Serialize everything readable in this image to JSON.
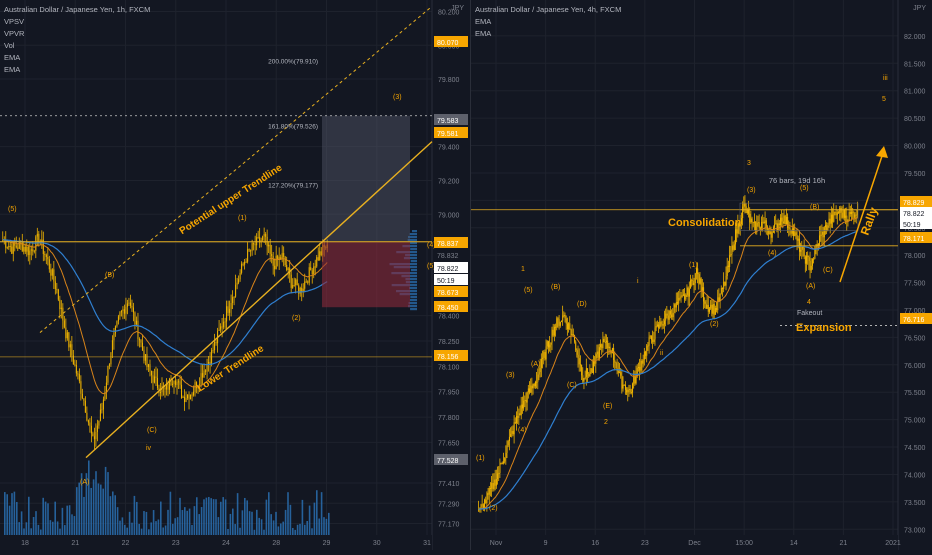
{
  "colors": {
    "bg": "#131722",
    "grid": "#1e222d",
    "candle": "#f0b400",
    "ema_fast": "#d8841a",
    "ema_slow": "#2f7fd0",
    "volume": "#2a6fb0",
    "gold_line": "#e8b020",
    "axis_text": "#7d818c",
    "label_text": "#b2b5be",
    "price_tag_orange": "#f7a600",
    "price_tag_white": "#ffffff",
    "price_tag_gray": "#5d606b",
    "short_box": "#8b2a3a",
    "long_box": "#55586a"
  },
  "left": {
    "title": "Australian Dollar / Japanese Yen, 1h, FXCM",
    "indicators": [
      "VPSV",
      "VPVR",
      "Vol",
      "EMA",
      "EMA"
    ],
    "currency": "JPY",
    "annotations": {
      "upper_trendline": "Potential  upper Trendline",
      "lower_trendline": "Lower Trendline",
      "fib_200": "200.00%(79.910)",
      "fib_161": "161.80%(79.526)",
      "fib_127": "127.20%(79.177)"
    },
    "wave_labels": [
      "(5)",
      "(B)",
      "(A)",
      "(C)",
      "iv",
      "(1)",
      "(2)",
      "(3)",
      "(4)",
      "(5)"
    ],
    "price_tags": [
      {
        "value": "80.070",
        "kind": "orange"
      },
      {
        "value": "79.583",
        "kind": "gray"
      },
      {
        "value": "79.581",
        "kind": "orange"
      },
      {
        "value": "78.837",
        "kind": "orange"
      },
      {
        "value": "78.832",
        "kind": "plain"
      },
      {
        "value": "78.822",
        "kind": "white"
      },
      {
        "value": "50:19",
        "kind": "white"
      },
      {
        "value": "78.673",
        "kind": "orange"
      },
      {
        "value": "78.450",
        "kind": "orange"
      },
      {
        "value": "78.156",
        "kind": "orange"
      },
      {
        "value": "77.528",
        "kind": "gray"
      }
    ]
  },
  "right": {
    "title": "Australian Dollar / Japanese Yen, 4h, FXCM",
    "indicators": [
      "EMA",
      "EMA"
    ],
    "currency": "JPY",
    "annotations": {
      "consolidation": "Consolidation",
      "expansion": "Expansion",
      "rally": "Rally",
      "fakeout": "Fakeout",
      "bars_range": "76 bars, 19d 16h"
    },
    "wave_labels": [
      "(1)",
      "(2)",
      "(3)",
      "(4)",
      "(5)",
      "(A)",
      "(B)",
      "(C)",
      "(D)",
      "(E)",
      "(1)",
      "(2)",
      "(3)",
      "(4)",
      "(5)",
      "(A)",
      "(B)",
      "(C)",
      "1",
      "2",
      "3",
      "4",
      "5",
      "i",
      "ii",
      "iii"
    ],
    "price_tags": [
      {
        "value": "78.829",
        "kind": "orange"
      },
      {
        "value": "78.822",
        "kind": "white"
      },
      {
        "value": "50:19",
        "kind": "white"
      },
      {
        "value": "78.171",
        "kind": "orange"
      },
      {
        "value": "76.716",
        "kind": "orange"
      }
    ]
  },
  "chart_data": [
    {
      "type": "candlestick",
      "title": "Australian Dollar / Japanese Yen, 1h, FXCM",
      "ylabel": "JPY",
      "ylim": [
        77.12,
        80.25
      ],
      "y_ticks": [
        "80.200",
        "80.000",
        "79.800",
        "79.400",
        "79.200",
        "79.000",
        "78.832",
        "78.400",
        "78.250",
        "78.100",
        "77.950",
        "77.800",
        "77.650",
        "77.410",
        "77.290",
        "77.170"
      ],
      "x_ticks": [
        "18",
        "21",
        "22",
        "23",
        "24",
        "28",
        "29",
        "30",
        "31"
      ],
      "approx_closes": [
        78.85,
        78.8,
        78.82,
        78.78,
        78.86,
        78.72,
        78.55,
        78.3,
        78.1,
        77.9,
        77.65,
        77.85,
        78.2,
        78.4,
        78.5,
        78.3,
        78.1,
        78.0,
        77.95,
        78.05,
        77.92,
        77.95,
        78.05,
        78.15,
        78.3,
        78.45,
        78.6,
        78.75,
        78.82,
        78.86,
        78.7,
        78.75,
        78.6,
        78.55,
        78.65,
        78.75,
        78.82
      ]
    },
    {
      "type": "candlestick",
      "title": "Australian Dollar / Japanese Yen, 4h, FXCM",
      "ylabel": "JPY",
      "ylim": [
        72.95,
        82.6
      ],
      "y_ticks": [
        "82.000",
        "81.500",
        "81.000",
        "80.500",
        "80.000",
        "79.500",
        "79.000",
        "78.500",
        "78.000",
        "77.500",
        "77.000",
        "76.500",
        "76.000",
        "75.500",
        "75.000",
        "74.500",
        "74.000",
        "73.500",
        "73.000"
      ],
      "x_ticks": [
        "Nov",
        "9",
        "16",
        "23",
        "Dec",
        "15:00",
        "14",
        "21",
        "2021"
      ],
      "approx_closes": [
        73.3,
        73.6,
        74.0,
        74.5,
        75.0,
        75.4,
        75.7,
        76.2,
        76.7,
        76.9,
        76.5,
        75.8,
        75.9,
        76.4,
        76.3,
        75.7,
        75.5,
        76.0,
        76.4,
        76.7,
        76.9,
        77.1,
        77.3,
        77.7,
        77.1,
        77.0,
        77.5,
        78.3,
        78.9,
        78.5,
        78.6,
        78.4,
        78.7,
        78.5,
        78.1,
        77.8,
        78.3,
        78.6,
        78.8,
        78.7,
        78.82
      ]
    }
  ]
}
